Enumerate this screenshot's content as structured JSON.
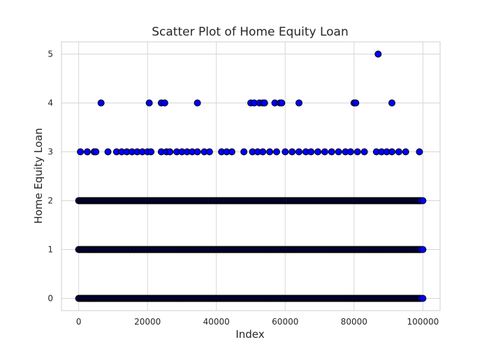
{
  "chart_data": {
    "type": "scatter",
    "title": "Scatter Plot of Home Equity Loan",
    "xlabel": "Index",
    "ylabel": "Home Equity Loan",
    "xlim": [
      -5000,
      105000
    ],
    "ylim": [
      -0.25,
      5.25
    ],
    "xticks": [
      0,
      20000,
      40000,
      60000,
      80000,
      100000
    ],
    "yticks": [
      0,
      1,
      2,
      3,
      4,
      5
    ],
    "grid": true,
    "marker_color": "#0000ff",
    "edge_color": "#000000",
    "dense_rows": [
      {
        "y": 0,
        "x_range": [
          0,
          99500
        ]
      },
      {
        "y": 1,
        "x_range": [
          0,
          99500
        ]
      },
      {
        "y": 2,
        "x_range": [
          0,
          99500
        ]
      }
    ],
    "points": [
      {
        "x": 6500,
        "y": 4
      },
      {
        "x": 20500,
        "y": 4
      },
      {
        "x": 24000,
        "y": 4
      },
      {
        "x": 25000,
        "y": 4
      },
      {
        "x": 34500,
        "y": 4
      },
      {
        "x": 50000,
        "y": 4
      },
      {
        "x": 51000,
        "y": 4
      },
      {
        "x": 52500,
        "y": 4
      },
      {
        "x": 53500,
        "y": 4
      },
      {
        "x": 54000,
        "y": 4
      },
      {
        "x": 57000,
        "y": 4
      },
      {
        "x": 58500,
        "y": 4
      },
      {
        "x": 59000,
        "y": 4
      },
      {
        "x": 64000,
        "y": 4
      },
      {
        "x": 80000,
        "y": 4
      },
      {
        "x": 80500,
        "y": 4
      },
      {
        "x": 91000,
        "y": 4
      },
      {
        "x": 87000,
        "y": 5
      },
      {
        "x": 500,
        "y": 3
      },
      {
        "x": 2500,
        "y": 3
      },
      {
        "x": 4500,
        "y": 3
      },
      {
        "x": 5000,
        "y": 3
      },
      {
        "x": 8500,
        "y": 3
      },
      {
        "x": 11000,
        "y": 3
      },
      {
        "x": 12500,
        "y": 3
      },
      {
        "x": 14000,
        "y": 3
      },
      {
        "x": 15500,
        "y": 3
      },
      {
        "x": 17000,
        "y": 3
      },
      {
        "x": 18500,
        "y": 3
      },
      {
        "x": 20000,
        "y": 3
      },
      {
        "x": 21000,
        "y": 3
      },
      {
        "x": 24000,
        "y": 3
      },
      {
        "x": 25500,
        "y": 3
      },
      {
        "x": 26500,
        "y": 3
      },
      {
        "x": 28500,
        "y": 3
      },
      {
        "x": 30000,
        "y": 3
      },
      {
        "x": 31500,
        "y": 3
      },
      {
        "x": 33000,
        "y": 3
      },
      {
        "x": 34500,
        "y": 3
      },
      {
        "x": 36500,
        "y": 3
      },
      {
        "x": 38000,
        "y": 3
      },
      {
        "x": 41500,
        "y": 3
      },
      {
        "x": 43000,
        "y": 3
      },
      {
        "x": 44500,
        "y": 3
      },
      {
        "x": 48000,
        "y": 3
      },
      {
        "x": 50500,
        "y": 3
      },
      {
        "x": 52000,
        "y": 3
      },
      {
        "x": 53500,
        "y": 3
      },
      {
        "x": 55500,
        "y": 3
      },
      {
        "x": 57500,
        "y": 3
      },
      {
        "x": 60000,
        "y": 3
      },
      {
        "x": 62000,
        "y": 3
      },
      {
        "x": 64000,
        "y": 3
      },
      {
        "x": 66000,
        "y": 3
      },
      {
        "x": 67500,
        "y": 3
      },
      {
        "x": 69500,
        "y": 3
      },
      {
        "x": 71500,
        "y": 3
      },
      {
        "x": 73500,
        "y": 3
      },
      {
        "x": 75500,
        "y": 3
      },
      {
        "x": 77500,
        "y": 3
      },
      {
        "x": 79000,
        "y": 3
      },
      {
        "x": 81000,
        "y": 3
      },
      {
        "x": 83000,
        "y": 3
      },
      {
        "x": 86500,
        "y": 3
      },
      {
        "x": 88000,
        "y": 3
      },
      {
        "x": 89500,
        "y": 3
      },
      {
        "x": 91000,
        "y": 3
      },
      {
        "x": 93000,
        "y": 3
      },
      {
        "x": 95000,
        "y": 3
      },
      {
        "x": 99000,
        "y": 3
      },
      {
        "x": 100000,
        "y": 2
      },
      {
        "x": 100000,
        "y": 1
      },
      {
        "x": 100000,
        "y": 0
      }
    ]
  }
}
